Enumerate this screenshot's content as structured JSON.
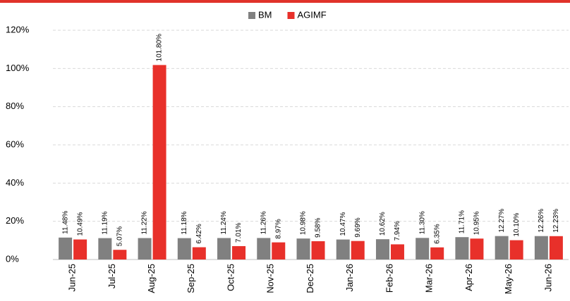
{
  "chart_data": {
    "type": "bar",
    "categories": [
      "Jun-25",
      "Jul-25",
      "Aug-25",
      "Sep-25",
      "Oct-25",
      "Nov-25",
      "Dec-25",
      "Jan-26",
      "Feb-26",
      "Mar-26",
      "Apr-26",
      "May-26",
      "Jun-26"
    ],
    "series": [
      {
        "name": "BM",
        "color": "#808080",
        "values": [
          11.48,
          11.19,
          11.22,
          11.18,
          11.24,
          11.26,
          10.98,
          10.47,
          10.62,
          11.3,
          11.71,
          12.27,
          12.26
        ],
        "value_labels": [
          "11.48%",
          "11.19%",
          "11.22%",
          "11.18%",
          "11.24%",
          "11.26%",
          "10.98%",
          "10.47%",
          "10.62%",
          "11.30%",
          "11.71%",
          "12.27%",
          "12.26%"
        ]
      },
      {
        "name": "AGIMF",
        "color": "#e8302a",
        "values": [
          10.49,
          5.07,
          101.8,
          6.42,
          7.01,
          8.97,
          9.58,
          9.69,
          7.94,
          6.35,
          10.95,
          10.1,
          12.23
        ],
        "value_labels": [
          "10.49%",
          "5.07%",
          "101.80%",
          "6.42%",
          "7.01%",
          "8.97%",
          "9.58%",
          "9.69%",
          "7.94%",
          "6.35%",
          "10.95%",
          "10.10%",
          "12.23%"
        ]
      }
    ],
    "ylim": [
      0,
      120
    ],
    "yticks": [
      {
        "value": 0,
        "label": "0%"
      },
      {
        "value": 20,
        "label": "20%"
      },
      {
        "value": 40,
        "label": "40%"
      },
      {
        "value": 60,
        "label": "60%"
      },
      {
        "value": 80,
        "label": "80%"
      },
      {
        "value": 100,
        "label": "100%"
      },
      {
        "value": 120,
        "label": "120%"
      }
    ],
    "grid": true,
    "legend": "top"
  }
}
